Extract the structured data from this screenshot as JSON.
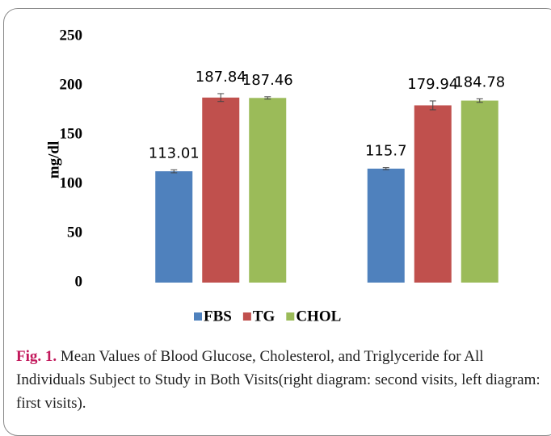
{
  "chart_data": {
    "type": "bar",
    "y_label": "mg/dl",
    "categories": [
      null,
      null
    ],
    "series": [
      {
        "name": "FBS",
        "color": "#4f81bd",
        "values": [
          113.01,
          115.7
        ],
        "errors": [
          1.5,
          1
        ]
      },
      {
        "name": "TG",
        "color": "#c0504d",
        "values": [
          187.84,
          179.94
        ],
        "errors": [
          4,
          4.5
        ]
      },
      {
        "name": "CHOL",
        "color": "#9bbb59",
        "values": [
          187.46,
          184.78
        ],
        "errors": [
          1.2,
          1.8
        ]
      }
    ],
    "ylim": [
      0,
      250
    ],
    "yticks": [
      0,
      50,
      100,
      150,
      200,
      250
    ],
    "grid": false,
    "legend": "bottom"
  },
  "caption": {
    "label": "Fig. 1.",
    "text": "Mean Values of Blood Glucose, Cholesterol, and Triglyceride for All Individuals Subject to Study in Both Visits(right diagram: second visits, left diagram: first visits)."
  }
}
